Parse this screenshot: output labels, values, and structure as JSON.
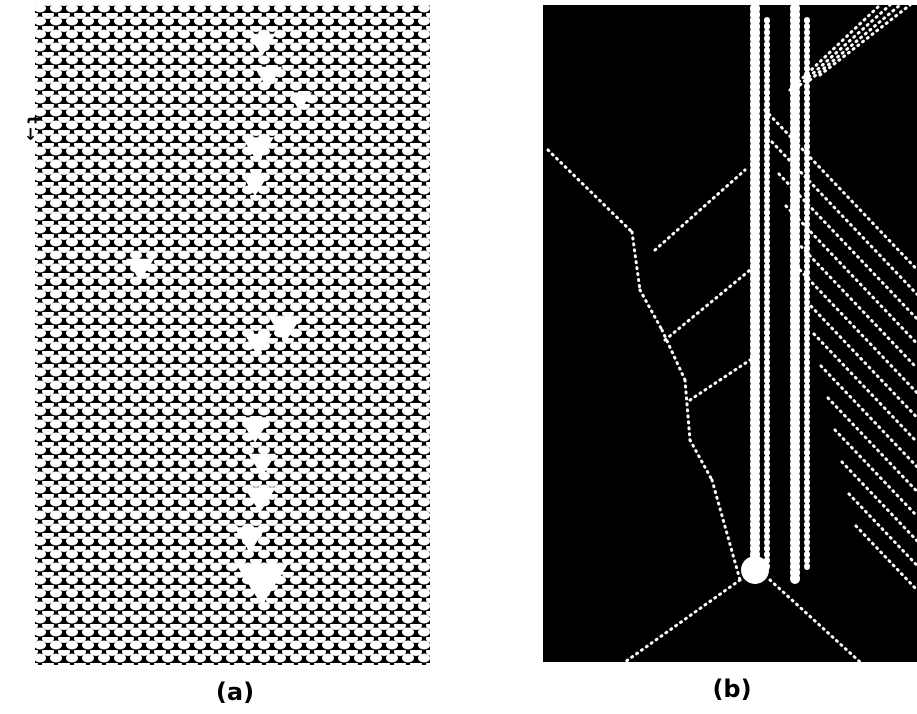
{
  "axis_label": "t",
  "panels": [
    {
      "label": "(a)"
    },
    {
      "label": "(b)"
    }
  ]
}
